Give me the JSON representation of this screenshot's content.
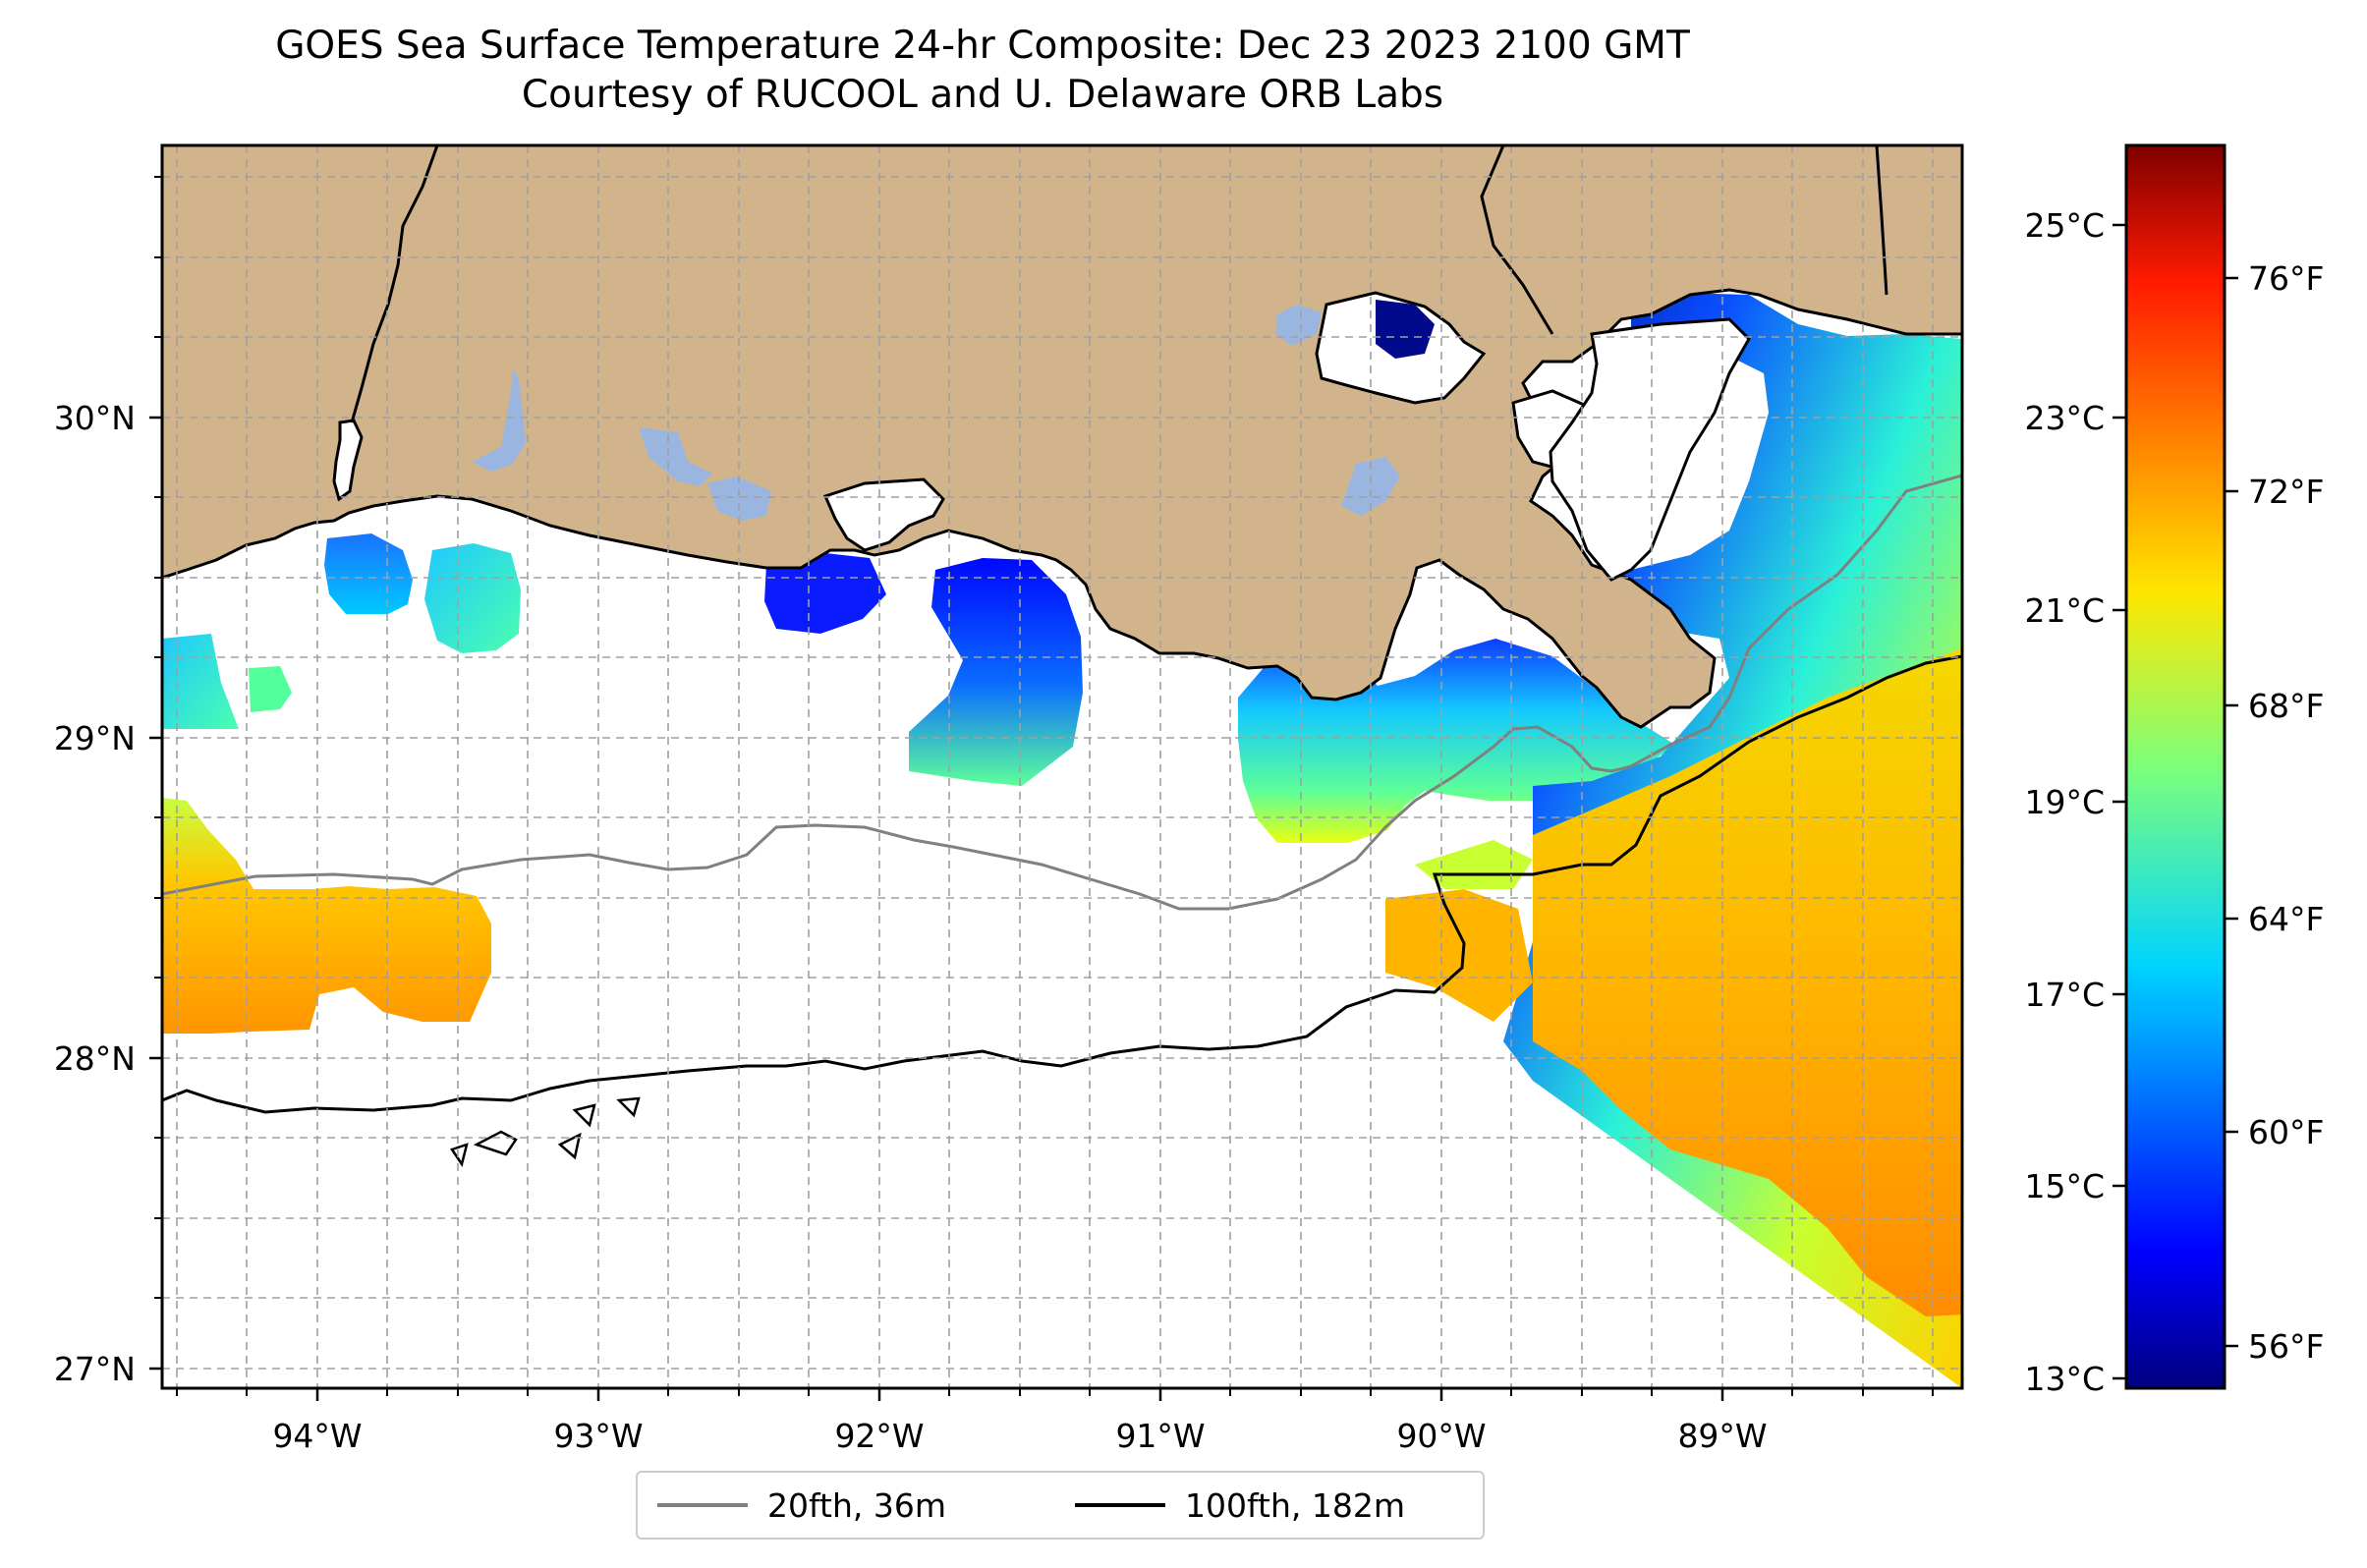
{
  "title_line1": "GOES Sea Surface Temperature 24-hr Composite: Dec 23 2023 2100 GMT",
  "title_line2": "Courtesy of RUCOOL and U. Delaware ORB Labs",
  "map": {
    "lon_ticks": [
      "94°W",
      "93°W",
      "92°W",
      "91°W",
      "90°W",
      "89°W"
    ],
    "lat_ticks": [
      "30°N",
      "29°N",
      "28°N",
      "27°N"
    ],
    "land_color": "#d2b48c",
    "lake_color": "#9ab6e0",
    "grid": "dashed"
  },
  "colorbar": {
    "celsius_ticks": [
      "25°C",
      "23°C",
      "21°C",
      "19°C",
      "17°C",
      "15°C",
      "13°C"
    ],
    "fahrenheit_ticks": [
      "76°F",
      "72°F",
      "68°F",
      "64°F",
      "60°F",
      "56°F"
    ],
    "colormap": "jet",
    "c_range": [
      13,
      26
    ]
  },
  "legend": [
    {
      "label": "20fth, 36m",
      "color": "#808080"
    },
    {
      "label": "100fth, 182m",
      "color": "#000000"
    }
  ]
}
